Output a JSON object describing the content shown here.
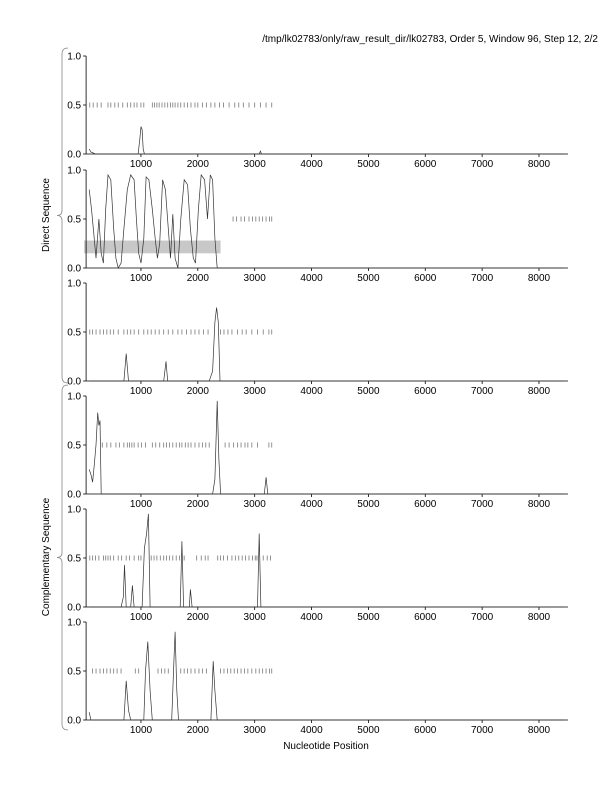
{
  "chart_data": {
    "type": "line",
    "title": "/tmp/lk02783/only/raw_result_dir/lk02783, Order 5, Window 96, Step 12, 2/2",
    "xlabel": "Nucleotide Position",
    "group_labels": [
      "Direct Sequence",
      "Complementary Sequence"
    ],
    "xlim": [
      0,
      8500
    ],
    "ylim": [
      0,
      1
    ],
    "x_ticks": [
      1000,
      2000,
      3000,
      4000,
      5000,
      6000,
      7000,
      8000
    ],
    "y_ticks": [
      "0.0",
      "0.5",
      "1.0"
    ],
    "grid": false,
    "panels": [
      {
        "name": "direct-frame-1",
        "group": 0,
        "curve": [
          [
            90,
            0.05
          ],
          [
            120,
            0.02
          ],
          [
            200,
            0
          ],
          [
            950,
            0
          ],
          [
            980,
            0.15
          ],
          [
            1000,
            0.28
          ],
          [
            1020,
            0.25
          ],
          [
            1040,
            0.05
          ],
          [
            1060,
            0
          ],
          [
            3080,
            0
          ],
          [
            3100,
            0.03
          ],
          [
            3120,
            0
          ],
          [
            8450,
            0
          ]
        ],
        "orf_ticks": [
          100,
          160,
          230,
          300,
          420,
          470,
          540,
          600,
          680,
          760,
          820,
          880,
          930,
          1000,
          1050,
          1200,
          1240,
          1280,
          1320,
          1370,
          1420,
          1470,
          1520,
          1560,
          1600,
          1650,
          1700,
          1760,
          1820,
          1880,
          1950,
          2000,
          2080,
          2150,
          2230,
          2300,
          2380,
          2450,
          2550,
          2650,
          2720,
          2800,
          2900,
          3000,
          3100,
          3200,
          3300
        ]
      },
      {
        "name": "direct-frame-2",
        "group": 0,
        "band": [
          0,
          2400,
          0.15,
          0.28
        ],
        "curve": [
          [
            90,
            0.8
          ],
          [
            130,
            0.6
          ],
          [
            170,
            0.35
          ],
          [
            210,
            0.1
          ],
          [
            260,
            0.5
          ],
          [
            300,
            0.15
          ],
          [
            340,
            0.05
          ],
          [
            380,
            0.6
          ],
          [
            420,
            0.95
          ],
          [
            470,
            0.9
          ],
          [
            520,
            0.4
          ],
          [
            560,
            0.1
          ],
          [
            600,
            0
          ],
          [
            650,
            0.05
          ],
          [
            700,
            0.4
          ],
          [
            760,
            0.8
          ],
          [
            820,
            0.95
          ],
          [
            880,
            0.9
          ],
          [
            920,
            0.5
          ],
          [
            960,
            0.15
          ],
          [
            1000,
            0.05
          ],
          [
            1050,
            0.3
          ],
          [
            1090,
            0.93
          ],
          [
            1140,
            0.9
          ],
          [
            1200,
            0.6
          ],
          [
            1250,
            0.3
          ],
          [
            1290,
            0.1
          ],
          [
            1330,
            0.25
          ],
          [
            1380,
            0.9
          ],
          [
            1430,
            0.8
          ],
          [
            1480,
            0.4
          ],
          [
            1520,
            0.1
          ],
          [
            1560,
            0.55
          ],
          [
            1600,
            0.1
          ],
          [
            1650,
            0
          ],
          [
            1700,
            0.5
          ],
          [
            1760,
            0.9
          ],
          [
            1820,
            0.85
          ],
          [
            1870,
            0.4
          ],
          [
            1920,
            0.1
          ],
          [
            1960,
            0.05
          ],
          [
            2010,
            0.6
          ],
          [
            2060,
            0.95
          ],
          [
            2120,
            0.9
          ],
          [
            2170,
            0.5
          ],
          [
            2220,
            0.95
          ],
          [
            2260,
            0.9
          ],
          [
            2300,
            0.3
          ],
          [
            2340,
            0
          ],
          [
            8450,
            0
          ]
        ],
        "orf_ticks": [
          2620,
          2680,
          2760,
          2820,
          2900,
          2960,
          3020,
          3080,
          3140,
          3200,
          3260,
          3300
        ]
      },
      {
        "name": "direct-frame-3",
        "group": 0,
        "curve": [
          [
            90,
            0
          ],
          [
            700,
            0
          ],
          [
            740,
            0.28
          ],
          [
            780,
            0
          ],
          [
            1400,
            0
          ],
          [
            1440,
            0.2
          ],
          [
            1470,
            0
          ],
          [
            2200,
            0
          ],
          [
            2260,
            0.1
          ],
          [
            2300,
            0.6
          ],
          [
            2330,
            0.75
          ],
          [
            2360,
            0.6
          ],
          [
            2390,
            0
          ],
          [
            8450,
            0
          ]
        ],
        "orf_ticks": [
          100,
          150,
          210,
          280,
          340,
          400,
          460,
          520,
          600,
          700,
          760,
          820,
          880,
          960,
          1050,
          1120,
          1180,
          1250,
          1320,
          1400,
          1480,
          1560,
          1650,
          1720,
          1800,
          1880,
          1950,
          2020,
          2100,
          2180,
          2400,
          2460,
          2530,
          2600,
          2700,
          2780,
          2850,
          2950,
          3050,
          3150,
          3250,
          3300
        ]
      },
      {
        "name": "complementary-frame-1",
        "group": 1,
        "curve": [
          [
            90,
            0.25
          ],
          [
            120,
            0.2
          ],
          [
            150,
            0.12
          ],
          [
            180,
            0.3
          ],
          [
            210,
            0.5
          ],
          [
            240,
            0.83
          ],
          [
            260,
            0.7
          ],
          [
            280,
            0.75
          ],
          [
            300,
            0
          ],
          [
            2260,
            0
          ],
          [
            2300,
            0.15
          ],
          [
            2340,
            0.95
          ],
          [
            2370,
            0.35
          ],
          [
            2400,
            0
          ],
          [
            3170,
            0
          ],
          [
            3200,
            0.17
          ],
          [
            3230,
            0
          ],
          [
            8450,
            0
          ]
        ],
        "orf_ticks": [
          320,
          400,
          470,
          560,
          620,
          700,
          760,
          800,
          840,
          880,
          950,
          1010,
          1080,
          1200,
          1260,
          1330,
          1400,
          1450,
          1500,
          1560,
          1620,
          1680,
          1720,
          1780,
          1830,
          1880,
          1950,
          2020,
          2080,
          2140,
          2200,
          2480,
          2550,
          2630,
          2700,
          2760,
          2830,
          2880,
          2950,
          3050,
          3250,
          3300
        ]
      },
      {
        "name": "complementary-frame-2",
        "group": 1,
        "curve": [
          [
            90,
            0
          ],
          [
            650,
            0
          ],
          [
            690,
            0.1
          ],
          [
            710,
            0.43
          ],
          [
            740,
            0
          ],
          [
            820,
            0
          ],
          [
            850,
            0.22
          ],
          [
            880,
            0
          ],
          [
            1020,
            0
          ],
          [
            1060,
            0.6
          ],
          [
            1100,
            0.75
          ],
          [
            1130,
            0.95
          ],
          [
            1160,
            0
          ],
          [
            1690,
            0
          ],
          [
            1720,
            0.67
          ],
          [
            1750,
            0
          ],
          [
            1850,
            0
          ],
          [
            1870,
            0.18
          ],
          [
            1900,
            0
          ],
          [
            3050,
            0
          ],
          [
            3080,
            0.75
          ],
          [
            3110,
            0
          ],
          [
            8450,
            0
          ]
        ],
        "orf_ticks": [
          100,
          150,
          200,
          260,
          340,
          380,
          420,
          460,
          520,
          600,
          660,
          740,
          800,
          880,
          960,
          1000,
          1180,
          1230,
          1280,
          1340,
          1400,
          1450,
          1500,
          1560,
          1620,
          1680,
          1760,
          1980,
          2060,
          2130,
          2180,
          2350,
          2400,
          2450,
          2520,
          2600,
          2660,
          2720,
          2780,
          2840,
          2900,
          2960,
          3010,
          3040,
          3150,
          3220,
          3280
        ]
      },
      {
        "name": "complementary-frame-3",
        "group": 1,
        "curve": [
          [
            90,
            0.08
          ],
          [
            120,
            0
          ],
          [
            700,
            0
          ],
          [
            740,
            0.4
          ],
          [
            780,
            0.1
          ],
          [
            820,
            0
          ],
          [
            1050,
            0
          ],
          [
            1080,
            0.5
          ],
          [
            1120,
            0.8
          ],
          [
            1160,
            0.3
          ],
          [
            1200,
            0
          ],
          [
            1540,
            0
          ],
          [
            1580,
            0.6
          ],
          [
            1600,
            0.9
          ],
          [
            1630,
            0.3
          ],
          [
            1660,
            0
          ],
          [
            2230,
            0
          ],
          [
            2270,
            0.6
          ],
          [
            2300,
            0.3
          ],
          [
            2340,
            0
          ],
          [
            8450,
            0
          ]
        ],
        "orf_ticks": [
          150,
          210,
          280,
          340,
          400,
          460,
          520,
          580,
          650,
          900,
          960,
          1300,
          1360,
          1420,
          1480,
          1700,
          1760,
          1820,
          1880,
          1950,
          2020,
          2080,
          2150,
          2400,
          2460,
          2520,
          2580,
          2640,
          2700,
          2760,
          2820,
          2880,
          2950,
          3020,
          3080,
          3140,
          3200,
          3260,
          3300
        ]
      }
    ]
  }
}
